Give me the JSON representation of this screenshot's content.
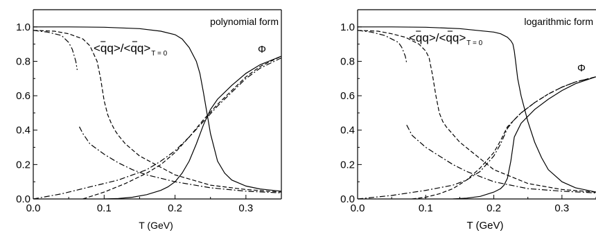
{
  "chart_data": [
    {
      "type": "line",
      "title": "polynomial form",
      "xlabel": "T (GeV)",
      "ylabel": "",
      "xlim": [
        0.0,
        0.35
      ],
      "ylim": [
        0.0,
        1.1
      ],
      "xticks": [
        "0.0",
        "0.1",
        "0.2",
        "0.3"
      ],
      "yticks": [
        "0.0",
        "0.2",
        "0.4",
        "0.6",
        "0.8",
        "1.0"
      ],
      "annotations": {
        "condensate": {
          "main": "<qq>/<qq>",
          "sub": "T = 0"
        },
        "phi": "Φ"
      },
      "series": [
        {
          "style": "solid",
          "x": [
            0.0,
            0.05,
            0.1,
            0.15,
            0.18,
            0.2,
            0.21,
            0.22,
            0.23,
            0.235,
            0.24,
            0.245,
            0.25,
            0.26,
            0.27,
            0.28,
            0.3,
            0.32,
            0.35
          ],
          "y": [
            1.0,
            1.0,
            0.998,
            0.99,
            0.975,
            0.955,
            0.93,
            0.88,
            0.8,
            0.73,
            0.62,
            0.5,
            0.38,
            0.22,
            0.15,
            0.11,
            0.075,
            0.058,
            0.045
          ]
        },
        {
          "style": "solid",
          "x": [
            0.1,
            0.12,
            0.14,
            0.16,
            0.18,
            0.19,
            0.2,
            0.21,
            0.22,
            0.23,
            0.24,
            0.25,
            0.26,
            0.28,
            0.3,
            0.32,
            0.35
          ],
          "y": [
            0.0,
            0.003,
            0.01,
            0.025,
            0.05,
            0.07,
            0.1,
            0.15,
            0.22,
            0.32,
            0.43,
            0.52,
            0.58,
            0.66,
            0.73,
            0.78,
            0.83
          ]
        },
        {
          "style": "dashed",
          "x": [
            0.0,
            0.03,
            0.05,
            0.07,
            0.08,
            0.09,
            0.095,
            0.1,
            0.105,
            0.11,
            0.115,
            0.12,
            0.13,
            0.15,
            0.2,
            0.25,
            0.3,
            0.35
          ],
          "y": [
            0.98,
            0.975,
            0.96,
            0.93,
            0.89,
            0.8,
            0.7,
            0.57,
            0.49,
            0.44,
            0.4,
            0.37,
            0.32,
            0.25,
            0.14,
            0.08,
            0.055,
            0.04
          ]
        },
        {
          "style": "dashed",
          "x": [
            0.07,
            0.1,
            0.13,
            0.16,
            0.18,
            0.2,
            0.22,
            0.24,
            0.26,
            0.28,
            0.3,
            0.32,
            0.35
          ],
          "y": [
            0.0,
            0.04,
            0.09,
            0.15,
            0.2,
            0.27,
            0.36,
            0.46,
            0.55,
            0.63,
            0.71,
            0.77,
            0.83
          ]
        },
        {
          "style": "dashdot",
          "x": [
            0.0,
            0.02,
            0.04,
            0.05,
            0.055,
            0.06,
            0.062
          ],
          "y": [
            0.98,
            0.97,
            0.95,
            0.91,
            0.87,
            0.8,
            0.75
          ]
        },
        {
          "style": "dashdot",
          "x": [
            0.065,
            0.07,
            0.08,
            0.1,
            0.12,
            0.14,
            0.16,
            0.18,
            0.2,
            0.25,
            0.3,
            0.35
          ],
          "y": [
            0.42,
            0.38,
            0.32,
            0.26,
            0.21,
            0.17,
            0.14,
            0.12,
            0.1,
            0.065,
            0.045,
            0.035
          ]
        },
        {
          "style": "dashdot",
          "x": [
            0.0,
            0.04,
            0.08,
            0.1,
            0.12,
            0.14,
            0.16,
            0.18,
            0.2,
            0.22,
            0.24,
            0.26,
            0.28,
            0.3,
            0.32,
            0.35
          ],
          "y": [
            0.0,
            0.03,
            0.07,
            0.09,
            0.11,
            0.14,
            0.17,
            0.22,
            0.28,
            0.36,
            0.45,
            0.54,
            0.62,
            0.7,
            0.76,
            0.82
          ]
        }
      ]
    },
    {
      "type": "line",
      "title": "logarithmic form",
      "xlabel": "T (GeV)",
      "ylabel": "",
      "xlim": [
        0.0,
        0.35
      ],
      "ylim": [
        0.0,
        1.1
      ],
      "xticks": [
        "0.0",
        "0.1",
        "0.2",
        "0.3"
      ],
      "yticks": [
        "0.0",
        "0.2",
        "0.4",
        "0.6",
        "0.8",
        "1.0"
      ],
      "annotations": {
        "condensate": {
          "main": "<qq>/<qq>",
          "sub": "T = 0"
        },
        "phi": "Φ"
      },
      "series": [
        {
          "style": "solid",
          "x": [
            0.0,
            0.05,
            0.1,
            0.15,
            0.2,
            0.21,
            0.22,
            0.225,
            0.228,
            0.23,
            0.232,
            0.235,
            0.24,
            0.25,
            0.26,
            0.27,
            0.28,
            0.3,
            0.32,
            0.35
          ],
          "y": [
            1.0,
            1.0,
            0.998,
            0.99,
            0.97,
            0.96,
            0.94,
            0.92,
            0.9,
            0.86,
            0.8,
            0.7,
            0.6,
            0.45,
            0.33,
            0.24,
            0.17,
            0.1,
            0.065,
            0.04
          ]
        },
        {
          "style": "solid",
          "x": [
            0.14,
            0.16,
            0.18,
            0.2,
            0.21,
            0.215,
            0.22,
            0.225,
            0.23,
            0.24,
            0.26,
            0.28,
            0.3,
            0.32,
            0.35
          ],
          "y": [
            0.0,
            0.005,
            0.015,
            0.04,
            0.06,
            0.08,
            0.12,
            0.22,
            0.36,
            0.44,
            0.52,
            0.58,
            0.63,
            0.67,
            0.71
          ]
        },
        {
          "style": "dashed",
          "x": [
            0.0,
            0.03,
            0.05,
            0.07,
            0.09,
            0.1,
            0.105,
            0.11,
            0.115,
            0.12,
            0.125,
            0.13,
            0.15,
            0.2,
            0.25,
            0.3,
            0.35
          ],
          "y": [
            0.98,
            0.975,
            0.96,
            0.94,
            0.9,
            0.86,
            0.82,
            0.72,
            0.6,
            0.5,
            0.45,
            0.42,
            0.33,
            0.17,
            0.09,
            0.055,
            0.04
          ]
        },
        {
          "style": "dashed",
          "x": [
            0.08,
            0.1,
            0.12,
            0.14,
            0.16,
            0.18,
            0.2,
            0.21,
            0.22,
            0.23,
            0.24,
            0.26,
            0.28,
            0.3,
            0.32,
            0.35
          ],
          "y": [
            0.0,
            0.01,
            0.03,
            0.06,
            0.11,
            0.18,
            0.27,
            0.34,
            0.42,
            0.46,
            0.5,
            0.56,
            0.61,
            0.65,
            0.68,
            0.71
          ]
        },
        {
          "style": "dashdot",
          "x": [
            0.0,
            0.02,
            0.04,
            0.06,
            0.065,
            0.07,
            0.072
          ],
          "y": [
            0.98,
            0.97,
            0.95,
            0.91,
            0.88,
            0.83,
            0.79
          ]
        },
        {
          "style": "dashdot",
          "x": [
            0.072,
            0.08,
            0.1,
            0.12,
            0.14,
            0.16,
            0.18,
            0.2,
            0.25,
            0.3,
            0.35
          ],
          "y": [
            0.43,
            0.37,
            0.3,
            0.25,
            0.2,
            0.16,
            0.13,
            0.1,
            0.06,
            0.045,
            0.035
          ]
        },
        {
          "style": "dashdot",
          "x": [
            0.0,
            0.05,
            0.1,
            0.14,
            0.16,
            0.18,
            0.2,
            0.21,
            0.22,
            0.23,
            0.24,
            0.26,
            0.28,
            0.3,
            0.32,
            0.35
          ],
          "y": [
            0.0,
            0.02,
            0.05,
            0.08,
            0.11,
            0.16,
            0.25,
            0.32,
            0.41,
            0.46,
            0.5,
            0.56,
            0.61,
            0.65,
            0.68,
            0.71
          ]
        }
      ]
    }
  ]
}
